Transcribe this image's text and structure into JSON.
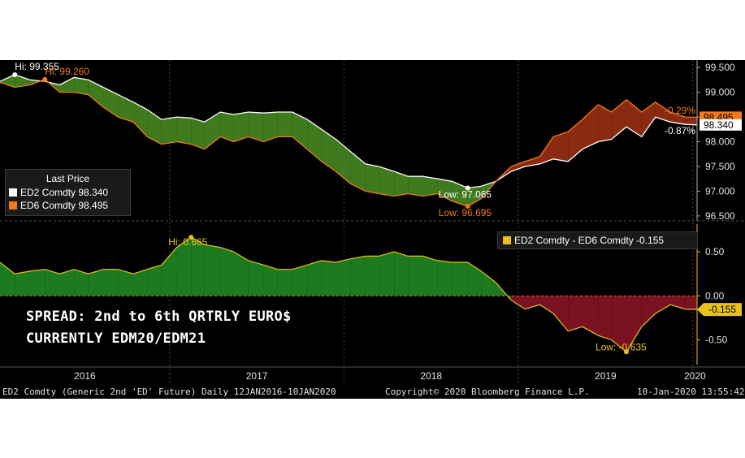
{
  "chart_data": [
    {
      "type": "line",
      "legend_title": "Last Price",
      "ylim": [
        96.4,
        99.65
      ],
      "yticks": [
        "96.500",
        "97.000",
        "97.500",
        "98.000",
        "98.500",
        "99.000",
        "99.500"
      ],
      "ytick_values": [
        96.5,
        97.0,
        97.5,
        98.0,
        98.5,
        99.0,
        99.5
      ],
      "xlim": [
        "2016-01-12",
        "2020-01-10"
      ],
      "series": [
        {
          "name": "ED2 Comdty",
          "last": "98.340",
          "color": "#ffffff",
          "points": [
            [
              "2016-01-12",
              99.22
            ],
            [
              "2016-02-12",
              99.355
            ],
            [
              "2016-03-15",
              99.25
            ],
            [
              "2016-04-15",
              99.22
            ],
            [
              "2016-05-16",
              99.15
            ],
            [
              "2016-06-15",
              99.3
            ],
            [
              "2016-07-15",
              99.25
            ],
            [
              "2016-08-15",
              99.1
            ],
            [
              "2016-09-15",
              98.95
            ],
            [
              "2016-10-17",
              98.8
            ],
            [
              "2016-11-15",
              98.65
            ],
            [
              "2016-12-15",
              98.45
            ],
            [
              "2017-01-16",
              98.5
            ],
            [
              "2017-02-15",
              98.48
            ],
            [
              "2017-03-15",
              98.4
            ],
            [
              "2017-04-17",
              98.6
            ],
            [
              "2017-05-15",
              98.55
            ],
            [
              "2017-06-15",
              98.6
            ],
            [
              "2017-07-17",
              98.58
            ],
            [
              "2017-08-15",
              98.6
            ],
            [
              "2017-09-15",
              98.6
            ],
            [
              "2017-10-16",
              98.45
            ],
            [
              "2017-11-15",
              98.25
            ],
            [
              "2017-12-15",
              98.05
            ],
            [
              "2018-01-15",
              97.8
            ],
            [
              "2018-02-15",
              97.55
            ],
            [
              "2018-03-15",
              97.5
            ],
            [
              "2018-04-16",
              97.4
            ],
            [
              "2018-05-15",
              97.3
            ],
            [
              "2018-06-15",
              97.3
            ],
            [
              "2018-07-16",
              97.25
            ],
            [
              "2018-08-15",
              97.2
            ],
            [
              "2018-09-17",
              97.065
            ],
            [
              "2018-10-15",
              97.1
            ],
            [
              "2018-11-15",
              97.2
            ],
            [
              "2018-12-17",
              97.4
            ],
            [
              "2019-01-15",
              97.5
            ],
            [
              "2019-02-15",
              97.55
            ],
            [
              "2019-03-15",
              97.65
            ],
            [
              "2019-04-15",
              97.6
            ],
            [
              "2019-05-15",
              97.85
            ],
            [
              "2019-06-17",
              98.0
            ],
            [
              "2019-07-15",
              98.05
            ],
            [
              "2019-08-15",
              98.3
            ],
            [
              "2019-09-16",
              98.1
            ],
            [
              "2019-10-15",
              98.5
            ],
            [
              "2019-11-15",
              98.4
            ],
            [
              "2019-12-16",
              98.35
            ],
            [
              "2020-01-10",
              98.34
            ]
          ]
        },
        {
          "name": "ED6 Comdty",
          "last": "98.495",
          "color": "#f27a1a",
          "points": [
            [
              "2016-01-12",
              99.2
            ],
            [
              "2016-02-12",
              99.1
            ],
            [
              "2016-03-15",
              99.15
            ],
            [
              "2016-04-15",
              99.26
            ],
            [
              "2016-05-16",
              99.0
            ],
            [
              "2016-06-15",
              99.0
            ],
            [
              "2016-07-15",
              98.95
            ],
            [
              "2016-08-15",
              98.7
            ],
            [
              "2016-09-15",
              98.5
            ],
            [
              "2016-10-17",
              98.4
            ],
            [
              "2016-11-15",
              98.1
            ],
            [
              "2016-12-15",
              97.95
            ],
            [
              "2017-01-16",
              98.0
            ],
            [
              "2017-02-15",
              97.95
            ],
            [
              "2017-03-15",
              97.85
            ],
            [
              "2017-04-17",
              98.1
            ],
            [
              "2017-05-15",
              98.0
            ],
            [
              "2017-06-15",
              98.1
            ],
            [
              "2017-07-17",
              98.0
            ],
            [
              "2017-08-15",
              98.1
            ],
            [
              "2017-09-15",
              98.1
            ],
            [
              "2017-10-16",
              97.85
            ],
            [
              "2017-11-15",
              97.6
            ],
            [
              "2017-12-15",
              97.4
            ],
            [
              "2018-01-15",
              97.15
            ],
            [
              "2018-02-15",
              97.0
            ],
            [
              "2018-03-15",
              96.95
            ],
            [
              "2018-04-16",
              96.9
            ],
            [
              "2018-05-15",
              96.95
            ],
            [
              "2018-06-15",
              96.9
            ],
            [
              "2018-07-16",
              96.95
            ],
            [
              "2018-08-15",
              96.8
            ],
            [
              "2018-09-17",
              96.695
            ],
            [
              "2018-10-15",
              96.85
            ],
            [
              "2018-11-15",
              97.2
            ],
            [
              "2018-12-17",
              97.5
            ],
            [
              "2019-01-15",
              97.6
            ],
            [
              "2019-02-15",
              97.7
            ],
            [
              "2019-03-15",
              98.1
            ],
            [
              "2019-04-15",
              98.2
            ],
            [
              "2019-05-15",
              98.45
            ],
            [
              "2019-06-17",
              98.75
            ],
            [
              "2019-07-15",
              98.6
            ],
            [
              "2019-08-15",
              98.85
            ],
            [
              "2019-09-16",
              98.6
            ],
            [
              "2019-10-15",
              98.8
            ],
            [
              "2019-11-15",
              98.6
            ],
            [
              "2019-12-16",
              98.5
            ],
            [
              "2020-01-10",
              98.495
            ]
          ]
        }
      ],
      "annotations": [
        {
          "text": "Hi: 99.355",
          "series": "ED2 Comdty",
          "x": "2016-02-12",
          "y": 99.355
        },
        {
          "text": "Hi: 99.260",
          "series": "ED6 Comdty",
          "x": "2016-04-15",
          "y": 99.26
        },
        {
          "text": "Low: 97.065",
          "series": "ED2 Comdty",
          "x": "2018-09-17",
          "y": 97.065
        },
        {
          "text": "Low: 96.695",
          "series": "ED6 Comdty",
          "x": "2018-09-17",
          "y": 96.695
        }
      ],
      "right_labels": [
        {
          "text": "-0.29%",
          "color": "#f27a1a",
          "y": 98.63
        },
        {
          "text": "98.495",
          "color": "#f27a1a",
          "y": 98.495
        },
        {
          "text": "98.340",
          "color": "#ffffff",
          "y": 98.34
        },
        {
          "text": "-0.87%",
          "color": "#ffffff",
          "y": 98.22
        }
      ],
      "fill_above_color": "#3f7a1e",
      "fill_below_color": "#8a2a10"
    },
    {
      "type": "area",
      "legend_label": "ED2 Comdty - ED6 Comdty -0.155",
      "ylim": [
        -0.78,
        0.85
      ],
      "yticks": [
        "-0.50",
        "0.00",
        "0.50"
      ],
      "ytick_values": [
        -0.5,
        0.0,
        0.5
      ],
      "last_label": "-0.155",
      "positive_color": "#1e7a1e",
      "negative_color": "#7a1222",
      "line_color": "#e8c21a",
      "series": [
        {
          "name": "ED2 Comdty - ED6 Comdty",
          "points": [
            [
              "2016-01-12",
              0.38
            ],
            [
              "2016-02-12",
              0.25
            ],
            [
              "2016-03-15",
              0.28
            ],
            [
              "2016-04-15",
              0.3
            ],
            [
              "2016-05-16",
              0.25
            ],
            [
              "2016-06-15",
              0.3
            ],
            [
              "2016-07-15",
              0.25
            ],
            [
              "2016-08-15",
              0.3
            ],
            [
              "2016-09-15",
              0.3
            ],
            [
              "2016-10-17",
              0.25
            ],
            [
              "2016-11-15",
              0.3
            ],
            [
              "2016-12-15",
              0.35
            ],
            [
              "2017-01-16",
              0.55
            ],
            [
              "2017-02-15",
              0.665
            ],
            [
              "2017-03-15",
              0.58
            ],
            [
              "2017-04-17",
              0.55
            ],
            [
              "2017-05-15",
              0.5
            ],
            [
              "2017-06-15",
              0.4
            ],
            [
              "2017-07-17",
              0.35
            ],
            [
              "2017-08-15",
              0.3
            ],
            [
              "2017-09-15",
              0.3
            ],
            [
              "2017-10-16",
              0.35
            ],
            [
              "2017-11-15",
              0.4
            ],
            [
              "2017-12-15",
              0.38
            ],
            [
              "2018-01-15",
              0.42
            ],
            [
              "2018-02-15",
              0.45
            ],
            [
              "2018-03-15",
              0.45
            ],
            [
              "2018-04-16",
              0.5
            ],
            [
              "2018-05-15",
              0.45
            ],
            [
              "2018-06-15",
              0.45
            ],
            [
              "2018-07-16",
              0.4
            ],
            [
              "2018-08-15",
              0.38
            ],
            [
              "2018-09-17",
              0.38
            ],
            [
              "2018-10-15",
              0.28
            ],
            [
              "2018-11-15",
              0.15
            ],
            [
              "2018-12-17",
              -0.05
            ],
            [
              "2019-01-15",
              -0.15
            ],
            [
              "2019-02-15",
              -0.1
            ],
            [
              "2019-03-15",
              -0.2
            ],
            [
              "2019-04-15",
              -0.4
            ],
            [
              "2019-05-15",
              -0.35
            ],
            [
              "2019-06-17",
              -0.45
            ],
            [
              "2019-07-15",
              -0.5
            ],
            [
              "2019-08-15",
              -0.635
            ],
            [
              "2019-09-16",
              -0.35
            ],
            [
              "2019-10-15",
              -0.2
            ],
            [
              "2019-11-15",
              -0.1
            ],
            [
              "2019-12-16",
              -0.15
            ],
            [
              "2020-01-10",
              -0.155
            ]
          ]
        }
      ],
      "annotations": [
        {
          "text": "Hi: 0.665",
          "x": "2017-02-15",
          "y": 0.665
        },
        {
          "text": "Low: -0.635",
          "x": "2019-08-15",
          "y": -0.635
        }
      ]
    }
  ],
  "caption": {
    "line1": "SPREAD: 2nd to 6th QRTRLY EURO$",
    "line2": "CURRENTLY EDM20/EDM21"
  },
  "x_axis": {
    "years": [
      "2016",
      "2017",
      "2018",
      "2019",
      "2020"
    ],
    "year_starts": [
      "2016-01-01",
      "2017-01-01",
      "2018-01-01",
      "2019-01-01",
      "2020-01-01"
    ]
  },
  "footer": {
    "left": "ED2 Comdty (Generic 2nd 'ED' Future)  Daily 12JAN2016-10JAN2020",
    "center": "Copyright© 2020 Bloomberg Finance L.P.",
    "right": "10-Jan-2020 13:55:42"
  }
}
